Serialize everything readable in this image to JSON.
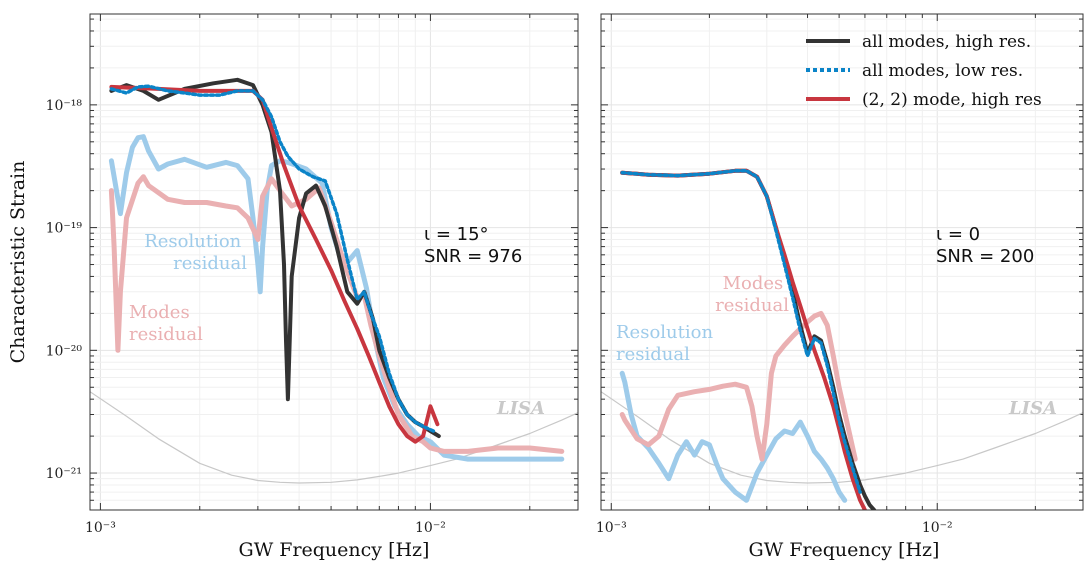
{
  "figure": {
    "ylabel": "Characteristic Strain",
    "left_xlabel": "GW Frequency [Hz]",
    "right_xlabel": "GW Frequency [Hz]"
  },
  "colors": {
    "all_high": "#333333",
    "all_low": "#0b84c8",
    "mode22": "#c8363f",
    "resolution_residual": "#9ecbea",
    "modes_residual": "#eab0b2",
    "lisa": "#c8c8c8"
  },
  "chart_data": [
    {
      "type": "line",
      "panel": "left",
      "xlabel": "GW Frequency [Hz]",
      "ylabel": "Characteristic Strain",
      "xscale": "log",
      "yscale": "log",
      "xlim": [
        0.00093,
        0.028
      ],
      "ylim": [
        5e-22,
        5.5e-18
      ],
      "x_ticks": [
        {
          "value": 0.001,
          "label": "10⁻³"
        },
        {
          "value": 0.01,
          "label": "10⁻²"
        }
      ],
      "y_ticks": [
        {
          "value": 1e-21,
          "label": "10⁻²¹"
        },
        {
          "value": 1e-20,
          "label": "10⁻²⁰"
        },
        {
          "value": 1e-19,
          "label": "10⁻¹⁹"
        },
        {
          "value": 1e-18,
          "label": "10⁻¹⁸"
        }
      ],
      "grid": true,
      "annotation": {
        "iota": "ι = 15°",
        "snr": "SNR = 976"
      },
      "text_labels": {
        "resolution_residual": [
          "Resolution",
          "residual"
        ],
        "modes_residual": [
          "Modes",
          "residual"
        ],
        "lisa": "LISA"
      },
      "series": [
        {
          "name": "all modes, high res.",
          "key": "all_high",
          "x": [
            0.00108,
            0.0012,
            0.00135,
            0.0015,
            0.0018,
            0.0022,
            0.0026,
            0.0029,
            0.0031,
            0.0033,
            0.0035,
            0.0036,
            0.00365,
            0.0037,
            0.0038,
            0.004,
            0.0042,
            0.0045,
            0.0048,
            0.0052,
            0.0056,
            0.006,
            0.0063,
            0.0067,
            0.007,
            0.0075,
            0.008,
            0.0085,
            0.009,
            0.0095,
            0.01,
            0.0106
          ],
          "y": [
            1.3e-18,
            1.45e-18,
            1.3e-18,
            1.1e-18,
            1.35e-18,
            1.5e-18,
            1.6e-18,
            1.45e-18,
            1e-18,
            6e-19,
            2e-19,
            5e-20,
            1.2e-20,
            4e-21,
            4e-20,
            1.2e-19,
            1.9e-19,
            2.2e-19,
            1.5e-19,
            7e-20,
            3e-20,
            2.4e-20,
            3e-20,
            1.8e-20,
            1e-20,
            6e-21,
            4e-21,
            3e-21,
            2.6e-21,
            2.4e-21,
            2.2e-21,
            2e-21
          ]
        },
        {
          "name": "all modes, low res.",
          "key": "all_low",
          "x": [
            0.00108,
            0.0012,
            0.0013,
            0.0014,
            0.0016,
            0.0018,
            0.002,
            0.0023,
            0.0026,
            0.0029,
            0.0031,
            0.0033,
            0.0035,
            0.0037,
            0.004,
            0.0044,
            0.0048,
            0.0052,
            0.0056,
            0.006,
            0.0063,
            0.0066,
            0.007,
            0.0075,
            0.008,
            0.0085,
            0.009,
            0.0095,
            0.0102
          ],
          "y": [
            1.35e-18,
            1.25e-18,
            1.4e-18,
            1.42e-18,
            1.3e-18,
            1.25e-18,
            1.2e-18,
            1.2e-18,
            1.3e-18,
            1.3e-18,
            1.1e-18,
            8e-19,
            5e-19,
            3.8e-19,
            3e-19,
            2.6e-19,
            2.4e-19,
            1.3e-19,
            5.5e-20,
            2.6e-20,
            3e-20,
            2e-20,
            1.3e-20,
            6.5e-21,
            4e-21,
            3e-21,
            2.6e-21,
            2.4e-21,
            2.2e-21
          ]
        },
        {
          "name": "(2, 2) mode, high res",
          "key": "mode22",
          "x": [
            0.00108,
            0.0015,
            0.002,
            0.0025,
            0.0029,
            0.0031,
            0.0033,
            0.0036,
            0.004,
            0.0045,
            0.005,
            0.0055,
            0.006,
            0.0065,
            0.007,
            0.0075,
            0.008,
            0.0085,
            0.009,
            0.0095,
            0.01,
            0.0105
          ],
          "y": [
            1.4e-18,
            1.35e-18,
            1.3e-18,
            1.3e-18,
            1.3e-18,
            1.1e-18,
            6.5e-19,
            3.2e-19,
            1.5e-19,
            8e-20,
            4.5e-20,
            2.5e-20,
            1.5e-20,
            9e-21,
            5.5e-21,
            3.5e-21,
            2.5e-21,
            2e-21,
            1.8e-21,
            2e-21,
            3.5e-21,
            2.5e-21
          ]
        },
        {
          "name": "Resolution residual",
          "key": "resolution_residual",
          "x": [
            0.00108,
            0.00115,
            0.0012,
            0.00125,
            0.0013,
            0.00135,
            0.0014,
            0.0015,
            0.0016,
            0.0018,
            0.0021,
            0.0024,
            0.0026,
            0.0028,
            0.0029,
            0.003,
            0.00305,
            0.0031,
            0.0032,
            0.0033,
            0.0035,
            0.0037,
            0.0042,
            0.0047,
            0.005,
            0.0053,
            0.0056,
            0.006,
            0.0064,
            0.0068,
            0.0072,
            0.0078,
            0.0085,
            0.0092,
            0.01,
            0.011,
            0.013,
            0.016,
            0.02,
            0.025
          ],
          "y": [
            3.5e-19,
            1.3e-19,
            2.8e-19,
            4.5e-19,
            5.4e-19,
            5.5e-19,
            4.2e-19,
            3e-19,
            3.3e-19,
            3.6e-19,
            3.1e-19,
            3.4e-19,
            3.2e-19,
            2.5e-19,
            1.2e-19,
            5e-20,
            3e-20,
            7e-20,
            2e-19,
            3.2e-19,
            3.5e-19,
            3.4e-19,
            3e-19,
            2.3e-19,
            1e-19,
            6e-20,
            5.2e-20,
            6.5e-20,
            3.2e-20,
            1.2e-20,
            6e-21,
            3.5e-21,
            2.5e-21,
            2e-21,
            1.8e-21,
            1.4e-21,
            1.3e-21,
            1.3e-21,
            1.3e-21,
            1.3e-21
          ]
        },
        {
          "name": "Modes residual",
          "key": "modes_residual",
          "x": [
            0.00108,
            0.0011,
            0.00113,
            0.00115,
            0.0012,
            0.0013,
            0.00135,
            0.0014,
            0.0016,
            0.0018,
            0.0021,
            0.0024,
            0.0026,
            0.0028,
            0.003,
            0.0031,
            0.0033,
            0.0035,
            0.0038,
            0.0042,
            0.0046,
            0.005,
            0.0055,
            0.006,
            0.0063,
            0.0066,
            0.007,
            0.0075,
            0.008,
            0.0088,
            0.0095,
            0.01,
            0.011,
            0.013,
            0.016,
            0.02,
            0.025
          ],
          "y": [
            2e-19,
            7e-20,
            1e-20,
            3e-20,
            1.2e-19,
            2.3e-19,
            2.6e-19,
            2.2e-19,
            1.7e-19,
            1.6e-19,
            1.6e-19,
            1.5e-19,
            1.45e-19,
            1.2e-19,
            8e-20,
            1.8e-19,
            2.5e-19,
            2e-19,
            1.5e-19,
            1.7e-19,
            2.1e-19,
            1.1e-19,
            5e-20,
            2.7e-20,
            2.8e-20,
            1.6e-20,
            9e-21,
            5e-21,
            3e-21,
            2e-21,
            1.8e-21,
            1.6e-21,
            1.5e-21,
            1.5e-21,
            1.6e-21,
            1.6e-21,
            1.5e-21
          ]
        },
        {
          "name": "LISA",
          "key": "lisa",
          "x": [
            0.00093,
            0.0012,
            0.0015,
            0.002,
            0.0025,
            0.003,
            0.0035,
            0.004,
            0.005,
            0.006,
            0.007,
            0.008,
            0.01,
            0.012,
            0.015,
            0.02,
            0.025,
            0.028
          ],
          "y": [
            4.6e-21,
            2.9e-21,
            1.9e-21,
            1.2e-21,
            9.6e-22,
            8.7e-22,
            8.4e-22,
            8.3e-22,
            8.4e-22,
            8.8e-22,
            9.4e-22,
            1e-21,
            1.15e-21,
            1.3e-21,
            1.6e-21,
            2.1e-21,
            2.7e-21,
            3.1e-21
          ]
        }
      ]
    },
    {
      "type": "line",
      "panel": "right",
      "xlabel": "GW Frequency [Hz]",
      "xscale": "log",
      "yscale": "log",
      "xlim": [
        0.00093,
        0.028
      ],
      "ylim": [
        5e-22,
        5.5e-18
      ],
      "x_ticks": [
        {
          "value": 0.001,
          "label": "10⁻³"
        },
        {
          "value": 0.01,
          "label": "10⁻²"
        }
      ],
      "grid": true,
      "legend": {
        "position": "top-right",
        "entries": [
          {
            "label": "all modes, high res.",
            "key": "all_high",
            "style": "solid"
          },
          {
            "label": "all modes, low res.",
            "key": "all_low",
            "style": "dotted"
          },
          {
            "label": "(2, 2) mode, high res",
            "key": "mode22",
            "style": "solid"
          }
        ]
      },
      "annotation": {
        "iota": "ι = 0",
        "snr": "SNR = 200"
      },
      "text_labels": {
        "resolution_residual": [
          "Resolution",
          "residual"
        ],
        "modes_residual": [
          "Modes",
          "residual"
        ],
        "lisa": "LISA"
      },
      "series": [
        {
          "name": "all modes, high res.",
          "key": "all_high",
          "x": [
            0.00108,
            0.0013,
            0.0016,
            0.002,
            0.0024,
            0.0026,
            0.0028,
            0.003,
            0.0032,
            0.0034,
            0.0036,
            0.0038,
            0.004,
            0.0042,
            0.0044,
            0.0046,
            0.0048,
            0.005,
            0.0052,
            0.0055,
            0.0058,
            0.006,
            0.0062,
            0.0064
          ],
          "y": [
            2.8e-19,
            2.7e-19,
            2.65e-19,
            2.75e-19,
            2.9e-19,
            2.9e-19,
            2.6e-19,
            1.8e-19,
            1e-19,
            5.5e-20,
            3e-20,
            1.6e-20,
            9.5e-21,
            1.3e-20,
            1.2e-20,
            8e-21,
            5e-21,
            3e-21,
            2e-21,
            1.2e-21,
            8e-22,
            6.5e-22,
            5.5e-22,
            5e-22
          ]
        },
        {
          "name": "all modes, low res.",
          "key": "all_low",
          "x": [
            0.00108,
            0.0013,
            0.0016,
            0.002,
            0.0024,
            0.0026,
            0.0028,
            0.003,
            0.0032,
            0.0034,
            0.0036,
            0.0038,
            0.004,
            0.0042,
            0.0044,
            0.0046,
            0.0048,
            0.005,
            0.0052,
            0.0055,
            0.0058
          ],
          "y": [
            2.8e-19,
            2.7e-19,
            2.65e-19,
            2.75e-19,
            2.9e-19,
            2.9e-19,
            2.6e-19,
            1.8e-19,
            9.5e-20,
            5e-20,
            2.7e-20,
            1.45e-20,
            9e-21,
            1.25e-20,
            1.15e-20,
            7.5e-21,
            4.5e-21,
            2.7e-21,
            1.8e-21,
            1.1e-21,
            7e-22
          ]
        },
        {
          "name": "(2, 2) mode, high res",
          "key": "mode22",
          "x": [
            0.00108,
            0.0013,
            0.0016,
            0.002,
            0.0024,
            0.0026,
            0.0028,
            0.003,
            0.0032,
            0.0034,
            0.0036,
            0.0038,
            0.004,
            0.0042,
            0.0045,
            0.0048,
            0.005,
            0.0052,
            0.0055,
            0.0058,
            0.006
          ],
          "y": [
            2.8e-19,
            2.7e-19,
            2.65e-19,
            2.75e-19,
            2.9e-19,
            2.9e-19,
            2.6e-19,
            1.8e-19,
            1e-19,
            6e-20,
            3.6e-20,
            2.3e-20,
            1.5e-20,
            1e-20,
            6e-21,
            3.5e-21,
            2.3e-21,
            1.5e-21,
            9e-22,
            6e-22,
            5e-22
          ]
        },
        {
          "name": "Resolution residual",
          "key": "resolution_residual",
          "x": [
            0.00108,
            0.0011,
            0.00115,
            0.0012,
            0.0013,
            0.0014,
            0.0015,
            0.0016,
            0.0017,
            0.0018,
            0.0019,
            0.002,
            0.0021,
            0.0022,
            0.0024,
            0.0026,
            0.0028,
            0.003,
            0.0032,
            0.0034,
            0.0036,
            0.0038,
            0.004,
            0.0042,
            0.0044,
            0.0046,
            0.0048,
            0.005,
            0.0052
          ],
          "y": [
            6.5e-21,
            5.5e-21,
            3e-21,
            2e-21,
            1.6e-21,
            1.2e-21,
            9e-22,
            1.4e-21,
            1.8e-21,
            1.4e-21,
            1.8e-21,
            1.7e-21,
            1.2e-21,
            9e-22,
            7e-22,
            6e-22,
            1e-21,
            1.4e-21,
            1.9e-21,
            2.2e-21,
            2.1e-21,
            2.6e-21,
            2e-21,
            1.5e-21,
            1.3e-21,
            1.1e-21,
            9e-22,
            7e-22,
            6e-22
          ]
        },
        {
          "name": "Modes residual",
          "key": "modes_residual",
          "x": [
            0.00108,
            0.0011,
            0.0012,
            0.0013,
            0.0014,
            0.0015,
            0.0016,
            0.0018,
            0.002,
            0.0022,
            0.0024,
            0.0026,
            0.0027,
            0.0028,
            0.0029,
            0.003,
            0.0031,
            0.0032,
            0.0034,
            0.0036,
            0.0038,
            0.004,
            0.0042,
            0.0044,
            0.0046,
            0.0048,
            0.005,
            0.0053,
            0.0056
          ],
          "y": [
            3e-21,
            2.7e-21,
            1.9e-21,
            1.7e-21,
            2e-21,
            3.3e-21,
            4.3e-21,
            4.6e-21,
            4.8e-21,
            5.1e-21,
            5.3e-21,
            5e-21,
            3.5e-21,
            2e-21,
            1.3e-21,
            2.5e-21,
            6.5e-21,
            9e-21,
            1.1e-20,
            1.3e-20,
            1.5e-20,
            1.7e-20,
            1.9e-20,
            2e-20,
            1.6e-20,
            9e-21,
            5e-21,
            2.5e-21,
            1.3e-21
          ]
        },
        {
          "name": "LISA",
          "key": "lisa",
          "x": [
            0.00093,
            0.0012,
            0.0015,
            0.002,
            0.0025,
            0.003,
            0.0035,
            0.004,
            0.005,
            0.006,
            0.007,
            0.008,
            0.01,
            0.012,
            0.015,
            0.02,
            0.025,
            0.028
          ],
          "y": [
            4.6e-21,
            2.9e-21,
            1.9e-21,
            1.2e-21,
            9.6e-22,
            8.7e-22,
            8.4e-22,
            8.3e-22,
            8.4e-22,
            8.8e-22,
            9.4e-22,
            1e-21,
            1.15e-21,
            1.3e-21,
            1.6e-21,
            2.1e-21,
            2.7e-21,
            3.1e-21
          ]
        }
      ]
    }
  ]
}
